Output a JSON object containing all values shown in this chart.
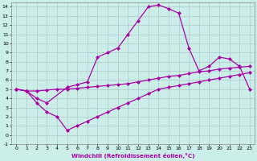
{
  "xlabel": "Windchill (Refroidissement éolien,°C)",
  "background_color": "#cceee8",
  "grid_color": "#aac8c8",
  "line_color": "#aa00aa",
  "xlim": [
    -0.5,
    23.5
  ],
  "ylim": [
    -1,
    14.5
  ],
  "xticks": [
    0,
    1,
    2,
    3,
    4,
    5,
    6,
    7,
    8,
    9,
    10,
    11,
    12,
    13,
    14,
    15,
    16,
    17,
    18,
    19,
    20,
    21,
    22,
    23
  ],
  "yticks": [
    -1,
    0,
    1,
    2,
    3,
    4,
    5,
    6,
    7,
    8,
    9,
    10,
    11,
    12,
    13,
    14
  ],
  "curve_top_x": [
    0,
    1,
    2,
    3,
    5,
    6,
    7,
    8,
    9,
    10,
    11,
    12,
    13,
    14,
    15,
    16,
    17,
    18,
    19,
    20,
    21,
    22,
    23
  ],
  "curve_top_y": [
    5.0,
    4.8,
    4.0,
    3.5,
    5.2,
    5.5,
    5.8,
    8.5,
    9.0,
    9.5,
    11.0,
    12.5,
    14.0,
    14.2,
    13.8,
    13.3,
    9.5,
    7.0,
    7.5,
    8.5,
    8.3,
    7.5,
    5.0
  ],
  "curve_mid_x": [
    0,
    1,
    2,
    3,
    4,
    5,
    6,
    7,
    8,
    9,
    10,
    11,
    12,
    13,
    14,
    15,
    16,
    17,
    18,
    19,
    20,
    21,
    22,
    23
  ],
  "curve_mid_y": [
    5.0,
    4.8,
    4.8,
    4.9,
    5.0,
    5.0,
    5.1,
    5.2,
    5.3,
    5.4,
    5.5,
    5.6,
    5.8,
    6.0,
    6.2,
    6.4,
    6.5,
    6.7,
    6.9,
    7.0,
    7.2,
    7.3,
    7.4,
    7.5
  ],
  "curve_bot_x": [
    0,
    1,
    2,
    3,
    4,
    5,
    6,
    7,
    8,
    9,
    10,
    11,
    12,
    13,
    14,
    15,
    16,
    17,
    18,
    19,
    20,
    21,
    22,
    23
  ],
  "curve_bot_y": [
    5.0,
    4.8,
    3.5,
    2.5,
    2.0,
    0.5,
    1.0,
    1.5,
    2.0,
    2.5,
    3.0,
    3.5,
    4.0,
    4.5,
    5.0,
    5.2,
    5.4,
    5.6,
    5.8,
    6.0,
    6.2,
    6.4,
    6.6,
    6.8
  ]
}
